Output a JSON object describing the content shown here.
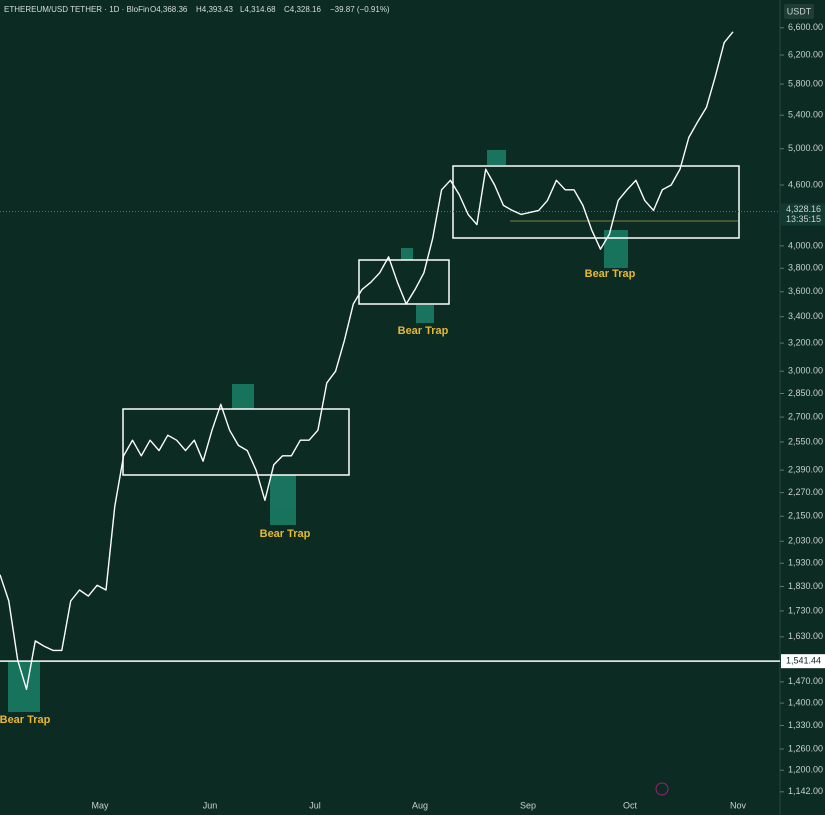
{
  "chart_data": {
    "type": "line",
    "title": "ETHEREUM/USD TETHER · 1D · BloFin",
    "header_values": [
      "O4,368.36",
      "H4,393.43",
      "L4,314.68",
      "C4,328.16",
      "−39.87 (−0.91%)"
    ],
    "currency": "USDT",
    "color": "#ffffff",
    "log_scale": true,
    "ylim": [
      1113,
      7035
    ],
    "yticks": [
      {
        "value": 6600,
        "label": "6,600.00"
      },
      {
        "value": 6200,
        "label": "6,200.00"
      },
      {
        "value": 5800,
        "label": "5,800.00"
      },
      {
        "value": 5400,
        "label": "5,400.00"
      },
      {
        "value": 5000,
        "label": "5,000.00"
      },
      {
        "value": 4600,
        "label": "4,600.00"
      },
      {
        "value": 4000,
        "label": "4,000.00"
      },
      {
        "value": 3800,
        "label": "3,800.00"
      },
      {
        "value": 3600,
        "label": "3,600.00"
      },
      {
        "value": 3400,
        "label": "3,400.00"
      },
      {
        "value": 3200,
        "label": "3,200.00"
      },
      {
        "value": 3000,
        "label": "3,000.00"
      },
      {
        "value": 2850,
        "label": "2,850.00"
      },
      {
        "value": 2700,
        "label": "2,700.00"
      },
      {
        "value": 2550,
        "label": "2,550.00"
      },
      {
        "value": 2390,
        "label": "2,390.00"
      },
      {
        "value": 2270,
        "label": "2,270.00"
      },
      {
        "value": 2150,
        "label": "2,150.00"
      },
      {
        "value": 2030,
        "label": "2,030.00"
      },
      {
        "value": 1930,
        "label": "1,930.00"
      },
      {
        "value": 1830,
        "label": "1,830.00"
      },
      {
        "value": 1730,
        "label": "1,730.00"
      },
      {
        "value": 1630,
        "label": "1,630.00"
      },
      {
        "value": 1470,
        "label": "1,470.00"
      },
      {
        "value": 1400,
        "label": "1,400.00"
      },
      {
        "value": 1330,
        "label": "1,330.00"
      },
      {
        "value": 1260,
        "label": "1,260.00"
      },
      {
        "value": 1200,
        "label": "1,200.00"
      },
      {
        "value": 1142,
        "label": "1,142.00"
      }
    ],
    "months": [
      "May",
      "Jun",
      "Jul",
      "Aug",
      "Sep",
      "Oct",
      "Nov"
    ],
    "values": [
      1880,
      1770,
      1545,
      1445,
      1615,
      1595,
      1580,
      1580,
      1770,
      1815,
      1790,
      1835,
      1815,
      2200,
      2470,
      2560,
      2470,
      2560,
      2500,
      2590,
      2560,
      2500,
      2560,
      2440,
      2620,
      2780,
      2620,
      2530,
      2500,
      2390,
      2230,
      2420,
      2470,
      2470,
      2560,
      2560,
      2620,
      2920,
      3000,
      3220,
      3500,
      3620,
      3680,
      3760,
      3900,
      3680,
      3500,
      3620,
      3760,
      4070,
      4550,
      4650,
      4500,
      4300,
      4200,
      4770,
      4600,
      4390,
      4340,
      4300,
      4320,
      4340,
      4440,
      4650,
      4550,
      4550,
      4390,
      4150,
      3970,
      4110,
      4440,
      4550,
      4650,
      4440,
      4340,
      4550,
      4600,
      4770,
      5130,
      5320,
      5500,
      5900,
      6380,
      6540
    ],
    "level": {
      "value": 1541.44,
      "label": "1,541.44"
    },
    "last_price": {
      "value": 4328.16,
      "label": "4,328.16"
    },
    "countdown": "13:35:15",
    "annotations": [
      "Bear Trap",
      "Bear Trap",
      "Bear Trap",
      "Bear Trap"
    ]
  }
}
